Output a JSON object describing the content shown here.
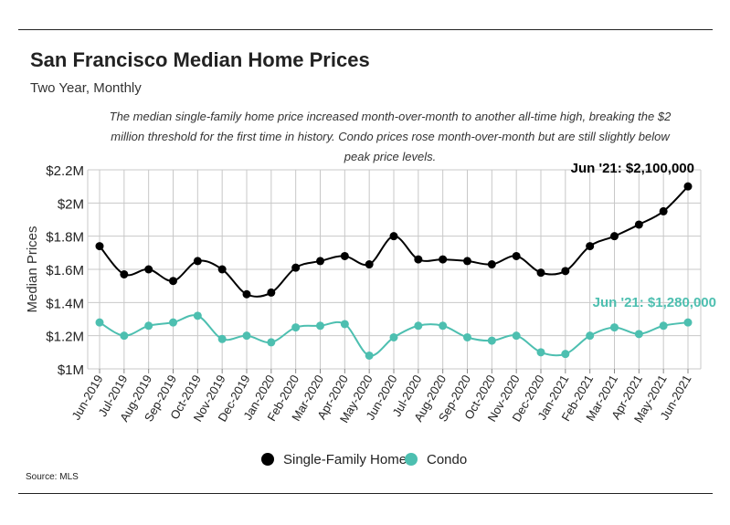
{
  "header": {
    "title": "San Francisco Median Home Prices",
    "subtitle": "Two Year, Monthly",
    "annotation": "The median single-family home price increased month-over-month to another all-time high, breaking the $2 million threshold for the first time in history. Condo prices rose month-over-month but are still slightly below peak price levels."
  },
  "footer": {
    "source": "Source:  MLS"
  },
  "chart_data": {
    "type": "line",
    "categories": [
      "Jun-2019",
      "Jul-2019",
      "Aug-2019",
      "Sep-2019",
      "Oct-2019",
      "Nov-2019",
      "Dec-2019",
      "Jan-2020",
      "Feb-2020",
      "Mar-2020",
      "Apr-2020",
      "May-2020",
      "Jun-2020",
      "Jul-2020",
      "Aug-2020",
      "Sep-2020",
      "Oct-2020",
      "Nov-2020",
      "Dec-2020",
      "Jan-2021",
      "Feb-2021",
      "Mar-2021",
      "Apr-2021",
      "May-2021",
      "Jun-2021"
    ],
    "series": [
      {
        "name": "Single-Family Home",
        "color": "#000000",
        "values": [
          1.74,
          1.57,
          1.6,
          1.53,
          1.65,
          1.6,
          1.45,
          1.46,
          1.61,
          1.65,
          1.68,
          1.63,
          1.8,
          1.66,
          1.66,
          1.65,
          1.63,
          1.68,
          1.58,
          1.59,
          1.74,
          1.8,
          1.87,
          1.95,
          2.1
        ]
      },
      {
        "name": "Condo",
        "color": "#4dbfb0",
        "values": [
          1.28,
          1.2,
          1.26,
          1.28,
          1.32,
          1.18,
          1.2,
          1.16,
          1.25,
          1.26,
          1.27,
          1.08,
          1.19,
          1.26,
          1.26,
          1.19,
          1.17,
          1.2,
          1.1,
          1.09,
          1.2,
          1.25,
          1.21,
          1.26,
          1.28
        ]
      }
    ],
    "ylabel": "Median Prices",
    "xlabel": "",
    "ylim": [
      1.0,
      2.2
    ],
    "yticks": [
      1.0,
      1.2,
      1.4,
      1.6,
      1.8,
      2.0,
      2.2
    ],
    "ytick_labels": [
      "$1M",
      "$1.2M",
      "$1.4M",
      "$1.6M",
      "$1.8M",
      "$2M",
      "$2.2M"
    ],
    "grid": true,
    "legend_position": "bottom-center",
    "annotations": [
      {
        "series": "Single-Family Home",
        "text": "Jun '21: $2,100,000"
      },
      {
        "series": "Condo",
        "text": "Jun '21: $1,280,000"
      }
    ]
  }
}
